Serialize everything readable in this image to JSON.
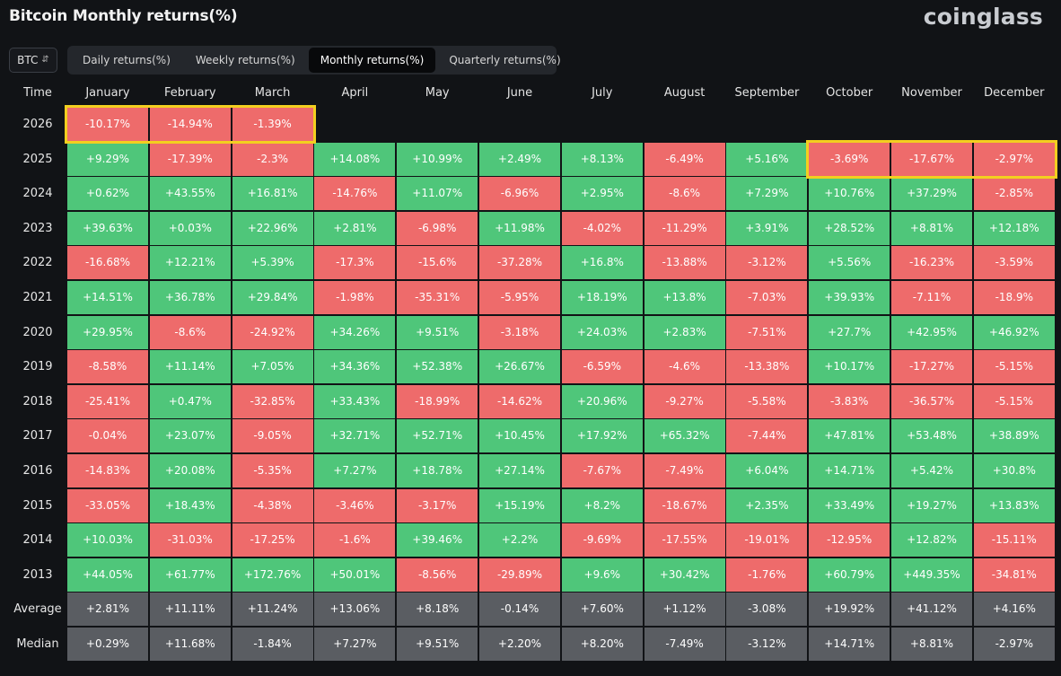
{
  "header": {
    "title": "Bitcoin Monthly returns(%)",
    "brand": "coinglass"
  },
  "coin_select": {
    "value": "BTC",
    "icon": "chevron-updown-icon"
  },
  "tabs": [
    {
      "label": "Daily returns(%)",
      "active": false
    },
    {
      "label": "Weekly returns(%)",
      "active": false
    },
    {
      "label": "Monthly returns(%)",
      "active": true
    },
    {
      "label": "Quarterly returns(%)",
      "active": false
    }
  ],
  "colors": {
    "positive": "#4fc67a",
    "negative": "#ee6b6b",
    "summary": "#5a5d62",
    "highlight": "#f3cf1f",
    "background": "#111316"
  },
  "chart_data": {
    "type": "table",
    "title": "Bitcoin Monthly returns(%)",
    "corner_label": "Time",
    "columns": [
      "January",
      "February",
      "March",
      "April",
      "May",
      "June",
      "July",
      "August",
      "September",
      "October",
      "November",
      "December"
    ],
    "rows": [
      {
        "label": "2026",
        "values": [
          "-10.17%",
          "-14.94%",
          "-1.39%",
          "",
          "",
          "",
          "",
          "",
          "",
          "",
          "",
          ""
        ]
      },
      {
        "label": "2025",
        "values": [
          "+9.29%",
          "-17.39%",
          "-2.3%",
          "+14.08%",
          "+10.99%",
          "+2.49%",
          "+8.13%",
          "-6.49%",
          "+5.16%",
          "-3.69%",
          "-17.67%",
          "-2.97%"
        ]
      },
      {
        "label": "2024",
        "values": [
          "+0.62%",
          "+43.55%",
          "+16.81%",
          "-14.76%",
          "+11.07%",
          "-6.96%",
          "+2.95%",
          "-8.6%",
          "+7.29%",
          "+10.76%",
          "+37.29%",
          "-2.85%"
        ]
      },
      {
        "label": "2023",
        "values": [
          "+39.63%",
          "+0.03%",
          "+22.96%",
          "+2.81%",
          "-6.98%",
          "+11.98%",
          "-4.02%",
          "-11.29%",
          "+3.91%",
          "+28.52%",
          "+8.81%",
          "+12.18%"
        ]
      },
      {
        "label": "2022",
        "values": [
          "-16.68%",
          "+12.21%",
          "+5.39%",
          "-17.3%",
          "-15.6%",
          "-37.28%",
          "+16.8%",
          "-13.88%",
          "-3.12%",
          "+5.56%",
          "-16.23%",
          "-3.59%"
        ]
      },
      {
        "label": "2021",
        "values": [
          "+14.51%",
          "+36.78%",
          "+29.84%",
          "-1.98%",
          "-35.31%",
          "-5.95%",
          "+18.19%",
          "+13.8%",
          "-7.03%",
          "+39.93%",
          "-7.11%",
          "-18.9%"
        ]
      },
      {
        "label": "2020",
        "values": [
          "+29.95%",
          "-8.6%",
          "-24.92%",
          "+34.26%",
          "+9.51%",
          "-3.18%",
          "+24.03%",
          "+2.83%",
          "-7.51%",
          "+27.7%",
          "+42.95%",
          "+46.92%"
        ]
      },
      {
        "label": "2019",
        "values": [
          "-8.58%",
          "+11.14%",
          "+7.05%",
          "+34.36%",
          "+52.38%",
          "+26.67%",
          "-6.59%",
          "-4.6%",
          "-13.38%",
          "+10.17%",
          "-17.27%",
          "-5.15%"
        ]
      },
      {
        "label": "2018",
        "values": [
          "-25.41%",
          "+0.47%",
          "-32.85%",
          "+33.43%",
          "-18.99%",
          "-14.62%",
          "+20.96%",
          "-9.27%",
          "-5.58%",
          "-3.83%",
          "-36.57%",
          "-5.15%"
        ]
      },
      {
        "label": "2017",
        "values": [
          "-0.04%",
          "+23.07%",
          "-9.05%",
          "+32.71%",
          "+52.71%",
          "+10.45%",
          "+17.92%",
          "+65.32%",
          "-7.44%",
          "+47.81%",
          "+53.48%",
          "+38.89%"
        ]
      },
      {
        "label": "2016",
        "values": [
          "-14.83%",
          "+20.08%",
          "-5.35%",
          "+7.27%",
          "+18.78%",
          "+27.14%",
          "-7.67%",
          "-7.49%",
          "+6.04%",
          "+14.71%",
          "+5.42%",
          "+30.8%"
        ]
      },
      {
        "label": "2015",
        "values": [
          "-33.05%",
          "+18.43%",
          "-4.38%",
          "-3.46%",
          "-3.17%",
          "+15.19%",
          "+8.2%",
          "-18.67%",
          "+2.35%",
          "+33.49%",
          "+19.27%",
          "+13.83%"
        ]
      },
      {
        "label": "2014",
        "values": [
          "+10.03%",
          "-31.03%",
          "-17.25%",
          "-1.6%",
          "+39.46%",
          "+2.2%",
          "-9.69%",
          "-17.55%",
          "-19.01%",
          "-12.95%",
          "+12.82%",
          "-15.11%"
        ]
      },
      {
        "label": "2013",
        "values": [
          "+44.05%",
          "+61.77%",
          "+172.76%",
          "+50.01%",
          "-8.56%",
          "-29.89%",
          "+9.6%",
          "+30.42%",
          "-1.76%",
          "+60.79%",
          "+449.35%",
          "-34.81%"
        ]
      },
      {
        "label": "Average",
        "summary": true,
        "values": [
          "+2.81%",
          "+11.11%",
          "+11.24%",
          "+13.06%",
          "+8.18%",
          "-0.14%",
          "+7.60%",
          "+1.12%",
          "-3.08%",
          "+19.92%",
          "+41.12%",
          "+4.16%"
        ]
      },
      {
        "label": "Median",
        "summary": true,
        "values": [
          "+0.29%",
          "+11.68%",
          "-1.84%",
          "+7.27%",
          "+9.51%",
          "+2.20%",
          "+8.20%",
          "-7.49%",
          "-3.12%",
          "+14.71%",
          "+8.81%",
          "-2.97%"
        ]
      }
    ],
    "highlights": [
      {
        "row": "2026",
        "months": [
          "January",
          "February",
          "March"
        ]
      },
      {
        "row": "2025",
        "months": [
          "October",
          "November",
          "December"
        ]
      }
    ]
  }
}
